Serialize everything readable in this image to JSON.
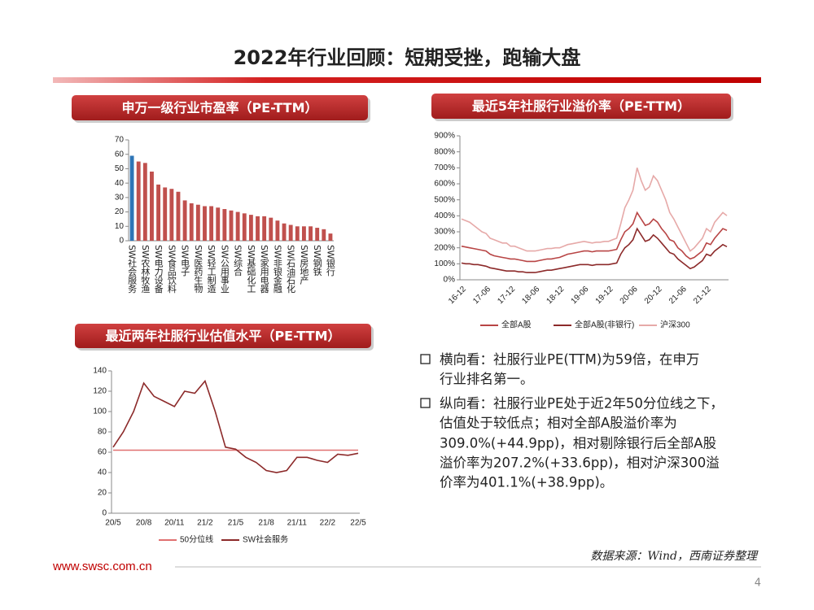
{
  "title": "2022年行业回顾：短期受挫，跑输大盘",
  "bullets": [
    [
      "横向看：社服行业PE(TTM)为59倍，在申万",
      "行业排名第一。"
    ],
    [
      "纵向看：社服行业PE处于近2年50分位线之下，",
      "估值处于较低点；相对全部A股溢价率为",
      "309.0%(+44.9pp)，相对剔除银行后全部A股",
      "溢价率为207.2%(+33.6pp)，相对沪深300溢",
      "价率为401.1%(+38.9pp)。"
    ]
  ],
  "source": "数据来源：Wind，西南证券整理",
  "url": "www.swsc.com.cn",
  "page_number": "4",
  "chart_data": [
    {
      "type": "bar",
      "title": "申万一级行业市盈率（PE-TTM）",
      "categories": [
        "SW社会服务",
        null,
        "SW农林牧渔",
        null,
        "SW电力设备",
        null,
        "SW食品饮料",
        null,
        "SW电子",
        null,
        "SW医药生物",
        null,
        "SW轻工制造",
        null,
        "SW公用事业",
        null,
        "SW综合",
        null,
        "SW基础化工",
        null,
        "SW家用电器",
        null,
        "SW非银金融",
        null,
        "SW石油石化",
        null,
        "SW房地产",
        null,
        "SW钢铁",
        null,
        "SW银行"
      ],
      "values": [
        59,
        55,
        54,
        48,
        39,
        37,
        36,
        34,
        28,
        26,
        25,
        24,
        24,
        23,
        22,
        21,
        20,
        19,
        18,
        17,
        17,
        16,
        14,
        12,
        11,
        10,
        10,
        10,
        9,
        8,
        5
      ],
      "colors": [
        "#2e75b6",
        "#c0504d",
        "#c0504d",
        "#c0504d",
        "#c0504d",
        "#c0504d",
        "#c0504d",
        "#c0504d",
        "#c0504d",
        "#c0504d",
        "#c0504d",
        "#c0504d",
        "#c0504d",
        "#c0504d",
        "#c0504d",
        "#c0504d",
        "#c0504d",
        "#c0504d",
        "#c0504d",
        "#c0504d",
        "#c0504d",
        "#c0504d",
        "#c0504d",
        "#c0504d",
        "#c0504d",
        "#c0504d",
        "#c0504d",
        "#c0504d",
        "#c0504d",
        "#c0504d",
        "#c0504d"
      ],
      "ylim": [
        0,
        70
      ],
      "yticks": [
        0,
        10,
        20,
        30,
        40,
        50,
        60,
        70
      ]
    },
    {
      "type": "line",
      "title": "最近5年社服行业溢价率（PE-TTM）",
      "categories": [
        "16-12",
        null,
        null,
        null,
        null,
        null,
        "17-06",
        null,
        null,
        null,
        null,
        null,
        "17-12",
        null,
        null,
        null,
        null,
        null,
        "18-06",
        null,
        null,
        null,
        null,
        null,
        "18-12",
        null,
        null,
        null,
        null,
        null,
        "19-06",
        null,
        null,
        null,
        null,
        null,
        "19-12",
        null,
        null,
        null,
        null,
        null,
        "20-06",
        null,
        null,
        null,
        null,
        null,
        "20-12",
        null,
        null,
        null,
        null,
        null,
        "21-06",
        null,
        null,
        null,
        null,
        null,
        "21-12",
        null,
        null,
        null,
        null,
        null
      ],
      "series": [
        {
          "name": "全部A股",
          "color": "#b84545",
          "values": [
            210,
            205,
            200,
            195,
            190,
            185,
            180,
            160,
            150,
            145,
            140,
            135,
            130,
            130,
            125,
            120,
            115,
            115,
            115,
            120,
            125,
            130,
            130,
            135,
            140,
            150,
            160,
            165,
            170,
            175,
            180,
            180,
            175,
            180,
            180,
            180,
            180,
            185,
            190,
            250,
            300,
            320,
            350,
            420,
            380,
            340,
            350,
            380,
            360,
            320,
            290,
            250,
            240,
            200,
            180,
            150,
            130,
            140,
            160,
            180,
            230,
            220,
            260,
            290,
            320,
            309
          ]
        },
        {
          "name": "全部A股(非银行)",
          "color": "#8c2a2a",
          "values": [
            105,
            100,
            100,
            95,
            95,
            90,
            85,
            75,
            70,
            65,
            60,
            55,
            55,
            55,
            50,
            50,
            45,
            45,
            45,
            50,
            55,
            60,
            60,
            65,
            70,
            75,
            80,
            85,
            90,
            95,
            95,
            95,
            90,
            95,
            95,
            95,
            95,
            100,
            105,
            160,
            200,
            220,
            250,
            320,
            280,
            240,
            250,
            280,
            260,
            230,
            200,
            170,
            160,
            130,
            110,
            90,
            70,
            80,
            100,
            120,
            160,
            150,
            180,
            200,
            220,
            207
          ]
        },
        {
          "name": "沪深300",
          "color": "#e6a9a8",
          "values": [
            380,
            370,
            360,
            340,
            320,
            300,
            290,
            260,
            250,
            240,
            230,
            230,
            210,
            210,
            200,
            190,
            180,
            180,
            180,
            185,
            190,
            195,
            195,
            200,
            200,
            210,
            220,
            225,
            230,
            235,
            240,
            235,
            230,
            235,
            235,
            240,
            240,
            250,
            260,
            350,
            450,
            500,
            560,
            700,
            620,
            560,
            580,
            650,
            620,
            560,
            500,
            420,
            380,
            330,
            280,
            230,
            180,
            200,
            230,
            260,
            320,
            300,
            360,
            390,
            420,
            401
          ]
        }
      ],
      "ylim": [
        0,
        900
      ],
      "yticks": [
        {
          "value": 0,
          "label": "0%"
        },
        {
          "value": 100,
          "label": "100%"
        },
        {
          "value": 200,
          "label": "200%"
        },
        {
          "value": 300,
          "label": "300%"
        },
        {
          "value": 400,
          "label": "400%"
        },
        {
          "value": 500,
          "label": "500%"
        },
        {
          "value": 600,
          "label": "600%"
        },
        {
          "value": 700,
          "label": "700%"
        },
        {
          "value": 800,
          "label": "800%"
        },
        {
          "value": 900,
          "label": "900%"
        }
      ]
    },
    {
      "type": "line",
      "title": "最近两年社服行业估值水平（PE-TTM）",
      "categories": [
        "20/5",
        null,
        null,
        "20/8",
        null,
        null,
        "20/11",
        null,
        null,
        "21/2",
        null,
        null,
        "21/5",
        null,
        null,
        "21/8",
        null,
        null,
        "21/11",
        null,
        null,
        "22/2",
        null,
        null,
        "22/5"
      ],
      "series": [
        {
          "name": "50分位线",
          "color": "#e07070",
          "values": [
            62,
            62,
            62,
            62,
            62,
            62,
            62,
            62,
            62,
            62,
            62,
            62,
            62,
            62,
            62,
            62,
            62,
            62,
            62,
            62,
            62,
            62,
            62,
            62,
            62
          ]
        },
        {
          "name": "SW社会服务",
          "color": "#8c2a2a",
          "values": [
            65,
            80,
            100,
            128,
            115,
            110,
            105,
            120,
            118,
            130,
            100,
            65,
            63,
            55,
            50,
            42,
            40,
            42,
            55,
            55,
            52,
            50,
            58,
            57,
            59
          ]
        }
      ],
      "ylim": [
        0,
        140
      ],
      "yticks": [
        0,
        20,
        40,
        60,
        80,
        100,
        120,
        140
      ]
    }
  ]
}
